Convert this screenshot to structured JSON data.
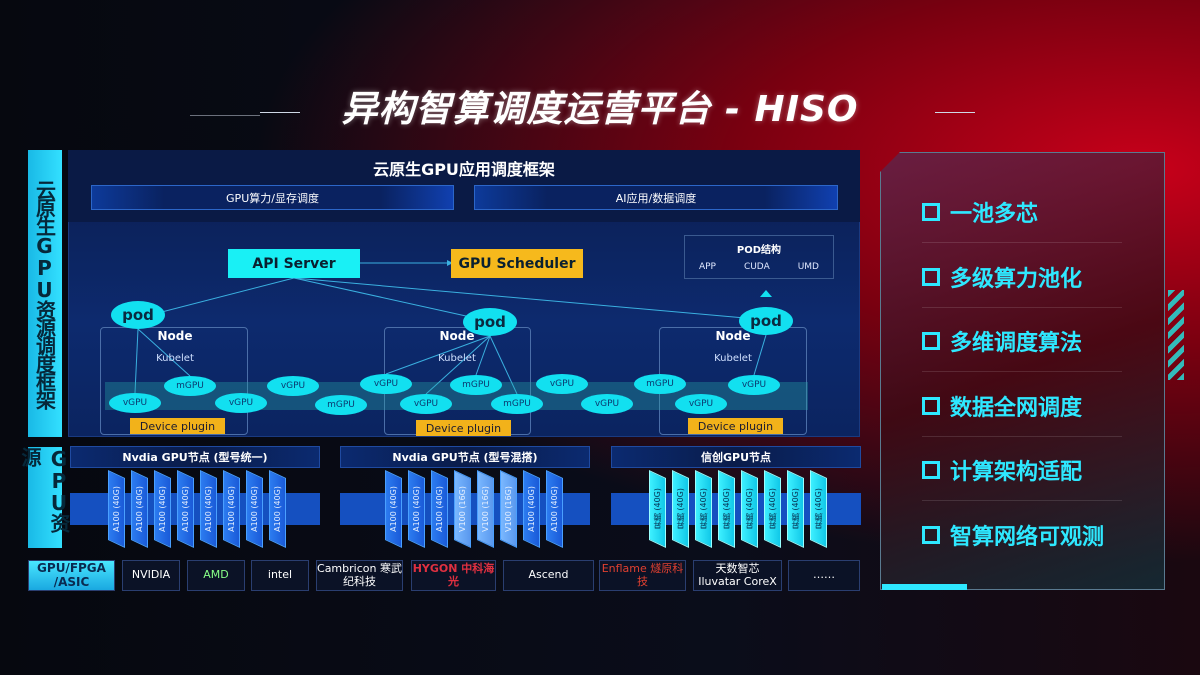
{
  "title": "异构智算调度运营平台 - HISO",
  "left_labels": {
    "framework": "云原生GPU资源调度框架",
    "gpu": "GPU资源"
  },
  "framework": {
    "title": "云原生GPU应用调度框架",
    "band1": "GPU算力/显存调度",
    "band2": "AI应用/数据调度",
    "api_server": "API Server",
    "scheduler": "GPU Scheduler",
    "pod_struct": {
      "title": "POD结构",
      "items": [
        "APP",
        "CUDA",
        "UMD"
      ]
    },
    "pod": "pod",
    "node": "Node",
    "kubelet": "Kubelet",
    "device_plugin": "Device plugin",
    "gpus": [
      "vGPU",
      "mGPU",
      "vGPU",
      "vGPU",
      "mGPU",
      "vGPU",
      "vGPU",
      "mGPU",
      "mGPU",
      "vGPU",
      "vGPU",
      "mGPU",
      "vGPU",
      "vGPU"
    ]
  },
  "gpu_nodes": [
    {
      "title": "Nvdia GPU节点 (型号统一)",
      "cards": [
        "A100 (40G)",
        "A100 (40G)",
        "A100 (40G)",
        "A100 (40G)",
        "A100 (40G)",
        "A100 (40G)",
        "A100 (40G)",
        "A100 (40G)"
      ],
      "style": "blue"
    },
    {
      "title": "Nvdia GPU节点 (型号混搭)",
      "cards": [
        "A100 (40G)",
        "A100 (40G)",
        "A100 (40G)",
        "V100 (16G)",
        "V100 (16G)",
        "V100 (16G)",
        "A100 (40G)",
        "A100 (40G)"
      ],
      "style": "mixed"
    },
    {
      "title": "信创GPU节点",
      "cards": [
        "昇腾 (40G)",
        "昇腾 (40G)",
        "昇腾 (40G)",
        "昇腾 (40G)",
        "昇腾 (40G)",
        "昇腾 (40G)",
        "昇腾 (40G)",
        "昇腾 (40G)"
      ],
      "style": "cyan"
    }
  ],
  "vendors": {
    "label": "GPU/FPGA /ASIC",
    "items": [
      "NVIDIA",
      "AMD",
      "intel",
      "Cambricon 寒武纪科技",
      "HYGON 中科海光",
      "Ascend",
      "Enflame 燧原科技",
      "天数智芯 Iluvatar CoreX",
      "……"
    ]
  },
  "features": [
    "一池多芯",
    "多级算力池化",
    "多维调度算法",
    "数据全网调度",
    "计算架构适配",
    "智算网络可观测"
  ],
  "colors": {
    "cyan": "#12e0f0",
    "gold": "#f2b21a",
    "red": "#c8001a",
    "navy": "#0b1d4f"
  }
}
